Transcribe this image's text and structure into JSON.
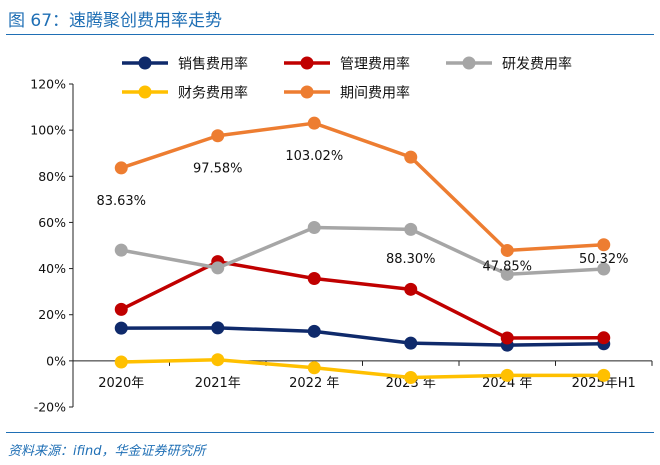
{
  "title": "图 67：速腾聚创费用率走势",
  "source": "资料来源：ifind，华金证券研究所",
  "colors": {
    "sales": "#0f2a6b",
    "admin": "#c00000",
    "rd": "#a6a6a6",
    "finance": "#ffc000",
    "period": "#ed7d31",
    "accent": "#1f6fb5"
  },
  "chart_data": {
    "type": "line",
    "title": "速腾聚创费用率走势",
    "categories": [
      "2020年",
      "2021年",
      "2022 年",
      "2023 年",
      "2024 年",
      "2025年H1"
    ],
    "ylim": [
      -20,
      120
    ],
    "yticks": [
      -20,
      0,
      20,
      40,
      60,
      80,
      100,
      120
    ],
    "ytick_labels": [
      "-20%",
      "0%",
      "20%",
      "40%",
      "60%",
      "80%",
      "100%",
      "120%"
    ],
    "series": [
      {
        "name": "销售费用率",
        "key": "sales",
        "values": [
          14.2,
          14.3,
          12.8,
          7.7,
          6.8,
          7.4
        ]
      },
      {
        "name": "管理费用率",
        "key": "admin",
        "values": [
          22.3,
          43.0,
          35.7,
          31.0,
          9.9,
          10.0
        ]
      },
      {
        "name": "研发费用率",
        "key": "rd",
        "values": [
          48.0,
          40.3,
          57.8,
          57.0,
          37.5,
          39.8
        ]
      },
      {
        "name": "财务费用率",
        "key": "finance",
        "values": [
          -0.5,
          0.5,
          -3.0,
          -7.2,
          -6.3,
          -6.3
        ]
      },
      {
        "name": "期间费用率",
        "key": "period",
        "values": [
          83.63,
          97.58,
          103.02,
          88.3,
          47.85,
          50.32
        ]
      }
    ],
    "data_labels": [
      "83.63%",
      "97.58%",
      "103.02%",
      "88.30%",
      "47.85%",
      "50.32%"
    ],
    "legend_position": "top"
  }
}
